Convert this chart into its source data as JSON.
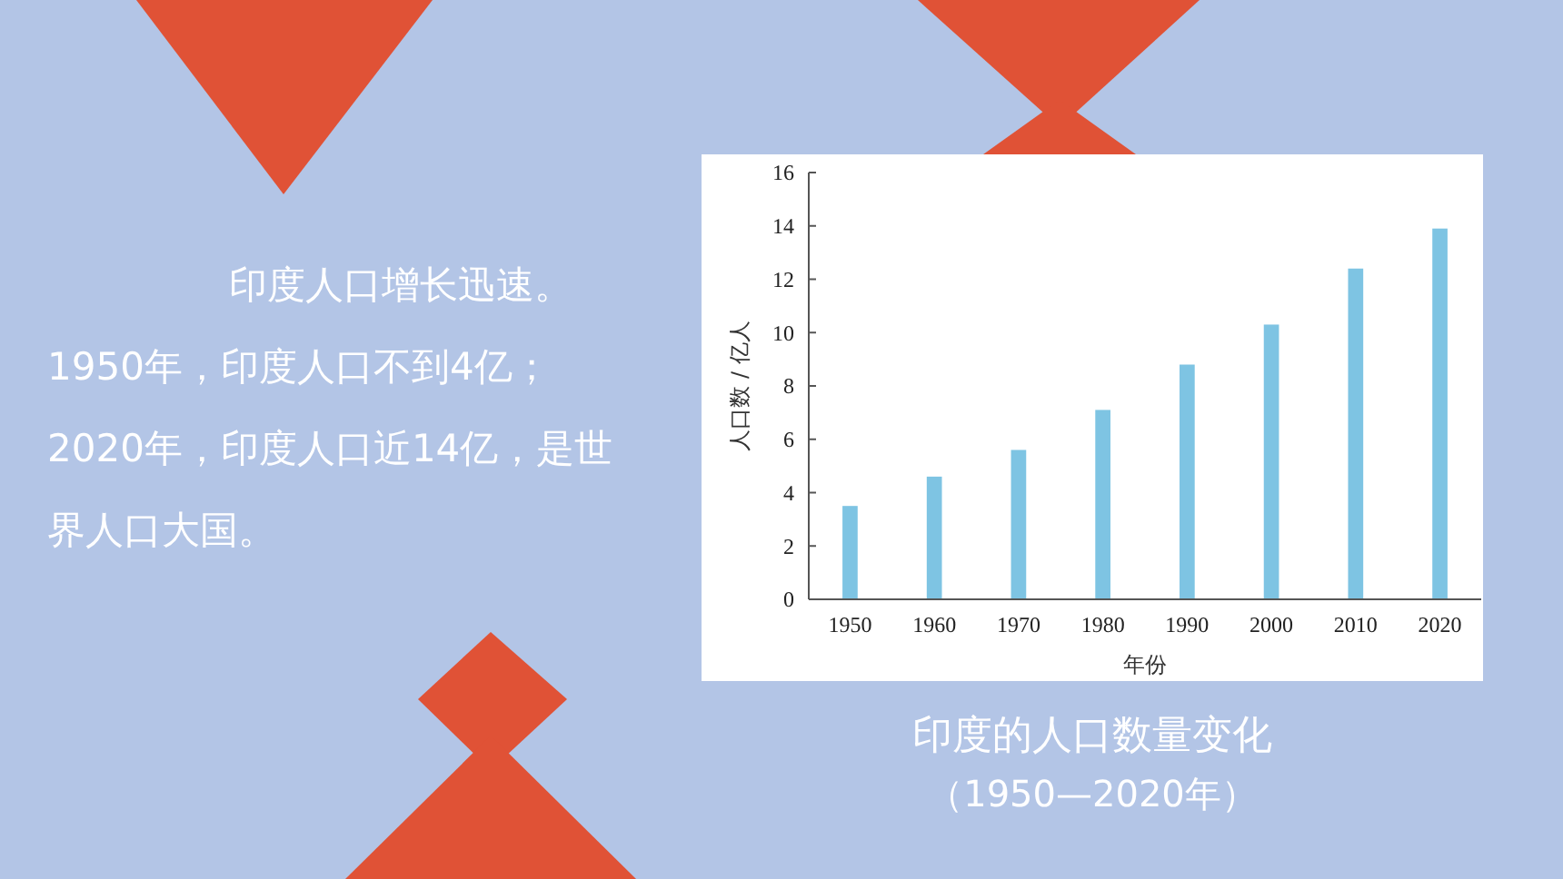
{
  "chart_data": {
    "type": "bar",
    "title": "印度的人口数量变化",
    "subtitle": "（1950—2020年）",
    "xlabel": "年份",
    "ylabel": "人口数 / 亿人",
    "categories": [
      "1950",
      "1960",
      "1970",
      "1980",
      "1990",
      "2000",
      "2010",
      "2020"
    ],
    "values": [
      3.5,
      4.6,
      5.6,
      7.1,
      8.8,
      10.3,
      12.4,
      13.9
    ],
    "color": "#7ec4e3",
    "ylim": [
      0,
      16
    ],
    "yticks": [
      0,
      2,
      4,
      6,
      8,
      10,
      12,
      14,
      16
    ],
    "grid": false,
    "annotations": [
      "印度人口增长迅速。1950年，印度人口不到4亿；2020年，印度人口近14亿，是世界人口大国。"
    ]
  }
}
